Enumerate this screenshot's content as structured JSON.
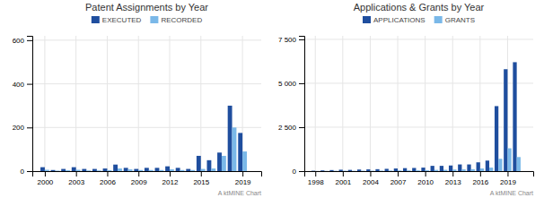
{
  "chart_data": [
    {
      "type": "bar",
      "title": "Patent Assignments by Year",
      "subtitle": "A ktMINE Chart",
      "x": [
        2000,
        2001,
        2002,
        2003,
        2004,
        2005,
        2006,
        2007,
        2008,
        2009,
        2010,
        2011,
        2012,
        2013,
        2014,
        2015,
        2016,
        2017,
        2018,
        2019
      ],
      "xlim": [
        1998.8,
        2020.8
      ],
      "xticks": [
        2000,
        2003,
        2006,
        2009,
        2012,
        2015,
        2019
      ],
      "ylim": [
        0,
        620
      ],
      "yticks": [
        0,
        200,
        400,
        600
      ],
      "grid": true,
      "legend": "top",
      "series": [
        {
          "name": "EXECUTED",
          "color": "#1f4e9e",
          "values": [
            18,
            5,
            10,
            18,
            10,
            10,
            12,
            30,
            15,
            10,
            15,
            15,
            22,
            15,
            10,
            70,
            50,
            85,
            300,
            175
          ]
        },
        {
          "name": "RECORDED",
          "color": "#7ab8e8",
          "values": [
            6,
            2,
            4,
            6,
            3,
            3,
            4,
            12,
            8,
            5,
            5,
            5,
            8,
            5,
            5,
            10,
            12,
            70,
            200,
            90
          ]
        }
      ]
    },
    {
      "type": "bar",
      "title": "Applications & Grants by Year",
      "subtitle": "A ktMINE Chart",
      "x": [
        1998,
        1999,
        2000,
        2001,
        2002,
        2003,
        2004,
        2005,
        2006,
        2007,
        2008,
        2009,
        2010,
        2011,
        2012,
        2013,
        2014,
        2015,
        2016,
        2017,
        2018,
        2019,
        2020
      ],
      "xlim": [
        1996.8,
        2021.8
      ],
      "xticks": [
        1998,
        2001,
        2004,
        2007,
        2010,
        2013,
        2016,
        2019
      ],
      "ylim": [
        0,
        7700
      ],
      "yticks": [
        0,
        {
          "value": 2500,
          "label": "2 500"
        },
        {
          "value": 5000,
          "label": "5 000"
        },
        {
          "value": 7500,
          "label": "7 500"
        }
      ],
      "grid": true,
      "legend": "top",
      "series": [
        {
          "name": "APPLICATIONS",
          "color": "#1f4e9e",
          "values": [
            20,
            40,
            60,
            80,
            70,
            90,
            100,
            110,
            130,
            150,
            170,
            180,
            200,
            300,
            300,
            320,
            380,
            380,
            500,
            600,
            3700,
            5800,
            6200
          ]
        },
        {
          "name": "GRANTS",
          "color": "#7ab8e8",
          "values": [
            5,
            10,
            15,
            20,
            15,
            20,
            20,
            25,
            30,
            35,
            40,
            45,
            50,
            70,
            75,
            90,
            100,
            110,
            150,
            200,
            700,
            1300,
            800
          ]
        }
      ]
    }
  ]
}
